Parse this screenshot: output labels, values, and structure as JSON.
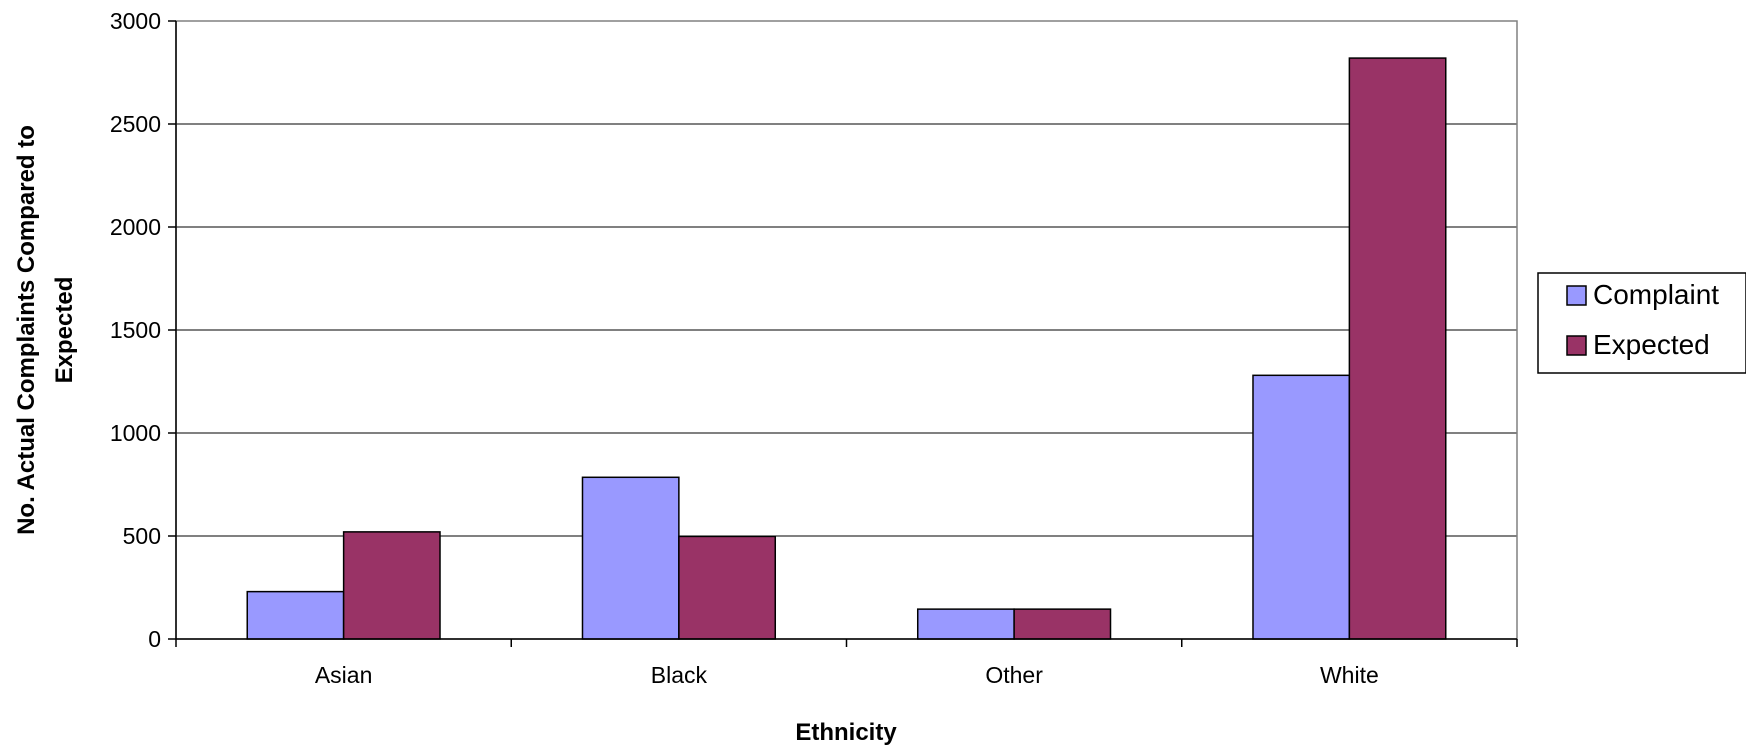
{
  "chart_data": {
    "type": "bar",
    "title": "",
    "xlabel": "Ethnicity",
    "ylabel": "No. Actual Complaints Compared to Expected",
    "ylabel_lines": [
      "No. Actual Complaints Compared to",
      "Expected"
    ],
    "categories": [
      "Asian",
      "Black",
      "Other",
      "White"
    ],
    "series": [
      {
        "name": "Complaint",
        "values": [
          230,
          785,
          145,
          1280
        ],
        "color": "#9999ff"
      },
      {
        "name": "Expected",
        "values": [
          520,
          498,
          145,
          2820
        ],
        "color": "#993366"
      }
    ],
    "ylim": [
      0,
      3000
    ],
    "yticks": [
      0,
      500,
      1000,
      1500,
      2000,
      2500,
      3000
    ],
    "grid": true,
    "legend_position": "right"
  }
}
